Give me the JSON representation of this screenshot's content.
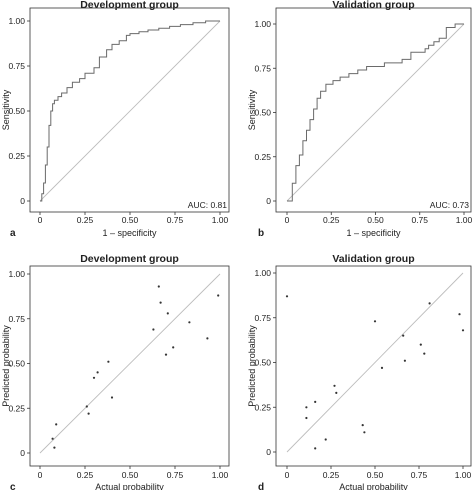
{
  "chart_data": [
    {
      "type": "line",
      "title": "Development group",
      "xlabel": "1 – specificity",
      "ylabel": "Sensitivity",
      "panel_letter": "a",
      "annotation": "AUC: 0.81",
      "xlim": [
        0,
        1
      ],
      "ylim": [
        0,
        1
      ],
      "xticks": [
        "0",
        "0.25",
        "0.50",
        "0.75",
        "1.00"
      ],
      "yticks": [
        "0",
        "0.25",
        "0.50",
        "0.75",
        "1.00"
      ],
      "grid": false,
      "reference_line": "diagonal",
      "series": [
        {
          "x": [
            0,
            0.01,
            0.01,
            0.02,
            0.02,
            0.03,
            0.03,
            0.04,
            0.04,
            0.05,
            0.05,
            0.06,
            0.06,
            0.07,
            0.07,
            0.08,
            0.08,
            0.1,
            0.1,
            0.12,
            0.12,
            0.15,
            0.15,
            0.18,
            0.18,
            0.22,
            0.22,
            0.25,
            0.25,
            0.3,
            0.3,
            0.33,
            0.33,
            0.37,
            0.37,
            0.4,
            0.4,
            0.44,
            0.44,
            0.48,
            0.48,
            0.5,
            0.5,
            0.55,
            0.55,
            0.6,
            0.6,
            0.66,
            0.66,
            0.72,
            0.72,
            0.78,
            0.78,
            0.85,
            0.85,
            0.92,
            0.92,
            1.0
          ],
          "y": [
            0,
            0,
            0.04,
            0.04,
            0.1,
            0.1,
            0.2,
            0.2,
            0.3,
            0.3,
            0.42,
            0.42,
            0.5,
            0.5,
            0.54,
            0.54,
            0.56,
            0.56,
            0.58,
            0.58,
            0.6,
            0.6,
            0.63,
            0.63,
            0.66,
            0.66,
            0.68,
            0.68,
            0.71,
            0.71,
            0.74,
            0.74,
            0.8,
            0.8,
            0.84,
            0.84,
            0.87,
            0.87,
            0.89,
            0.89,
            0.92,
            0.92,
            0.93,
            0.93,
            0.94,
            0.94,
            0.95,
            0.95,
            0.96,
            0.96,
            0.97,
            0.97,
            0.98,
            0.98,
            0.99,
            0.99,
            1.0,
            1.0
          ]
        }
      ]
    },
    {
      "type": "line",
      "title": "Validation group",
      "xlabel": "1 – specificity",
      "ylabel": "Sensitivity",
      "panel_letter": "b",
      "annotation": "AUC: 0.73",
      "xlim": [
        0,
        1
      ],
      "ylim": [
        0,
        1
      ],
      "xticks": [
        "0",
        "0.25",
        "0.50",
        "0.75",
        "1.00"
      ],
      "yticks": [
        "0",
        "0.25",
        "0.50",
        "0.75",
        "1.00"
      ],
      "grid": false,
      "reference_line": "diagonal",
      "series": [
        {
          "x": [
            0,
            0.03,
            0.03,
            0.05,
            0.05,
            0.07,
            0.07,
            0.09,
            0.09,
            0.11,
            0.11,
            0.13,
            0.13,
            0.15,
            0.15,
            0.17,
            0.17,
            0.19,
            0.19,
            0.22,
            0.22,
            0.26,
            0.26,
            0.3,
            0.3,
            0.35,
            0.35,
            0.4,
            0.4,
            0.45,
            0.45,
            0.5,
            0.5,
            0.55,
            0.55,
            0.6,
            0.6,
            0.65,
            0.65,
            0.7,
            0.7,
            0.78,
            0.78,
            0.8,
            0.8,
            0.83,
            0.83,
            0.86,
            0.86,
            0.9,
            0.9,
            0.95,
            0.95,
            1.0
          ],
          "y": [
            0,
            0,
            0.1,
            0.1,
            0.2,
            0.2,
            0.26,
            0.26,
            0.34,
            0.34,
            0.4,
            0.4,
            0.46,
            0.46,
            0.52,
            0.52,
            0.58,
            0.58,
            0.62,
            0.62,
            0.66,
            0.66,
            0.68,
            0.68,
            0.7,
            0.7,
            0.72,
            0.72,
            0.74,
            0.74,
            0.76,
            0.76,
            0.76,
            0.76,
            0.78,
            0.78,
            0.78,
            0.78,
            0.8,
            0.8,
            0.84,
            0.84,
            0.86,
            0.86,
            0.88,
            0.88,
            0.9,
            0.9,
            0.92,
            0.92,
            0.98,
            0.98,
            1.0,
            1.0
          ]
        }
      ]
    },
    {
      "type": "scatter",
      "title": "Development group",
      "xlabel": "Actual probability",
      "ylabel": "Predicted probability",
      "panel_letter": "c",
      "xlim": [
        0,
        1
      ],
      "ylim": [
        0,
        1
      ],
      "xticks": [
        "0",
        "0.25",
        "0.50",
        "0.75",
        "1.00"
      ],
      "yticks": [
        "0",
        "0.25",
        "0.50",
        "0.75",
        "1.00"
      ],
      "grid": false,
      "reference_line": "diagonal",
      "series": [
        {
          "x": [
            0.07,
            0.08,
            0.09,
            0.26,
            0.27,
            0.3,
            0.32,
            0.38,
            0.4,
            0.63,
            0.66,
            0.67,
            0.7,
            0.71,
            0.74,
            0.83,
            0.93,
            0.99
          ],
          "y": [
            0.08,
            0.03,
            0.16,
            0.26,
            0.22,
            0.42,
            0.45,
            0.51,
            0.31,
            0.69,
            0.93,
            0.84,
            0.55,
            0.78,
            0.59,
            0.73,
            0.64,
            0.88
          ]
        }
      ]
    },
    {
      "type": "scatter",
      "title": "Validation group",
      "xlabel": "Actual probability",
      "ylabel": "Predicted probability",
      "panel_letter": "d",
      "xlim": [
        0,
        1
      ],
      "ylim": [
        0,
        1
      ],
      "xticks": [
        "0",
        "0.25",
        "0.50",
        "0.75",
        "1.00"
      ],
      "yticks": [
        "0",
        "0.25",
        "0.50",
        "0.75",
        "1.00"
      ],
      "grid": false,
      "reference_line": "diagonal",
      "series": [
        {
          "x": [
            0.0,
            0.11,
            0.11,
            0.16,
            0.16,
            0.22,
            0.27,
            0.28,
            0.43,
            0.44,
            0.5,
            0.54,
            0.66,
            0.67,
            0.76,
            0.78,
            0.81,
            0.98,
            1.0
          ],
          "y": [
            0.87,
            0.25,
            0.19,
            0.28,
            0.02,
            0.07,
            0.37,
            0.33,
            0.15,
            0.11,
            0.73,
            0.47,
            0.65,
            0.51,
            0.6,
            0.55,
            0.83,
            0.77,
            0.68
          ]
        }
      ]
    }
  ]
}
